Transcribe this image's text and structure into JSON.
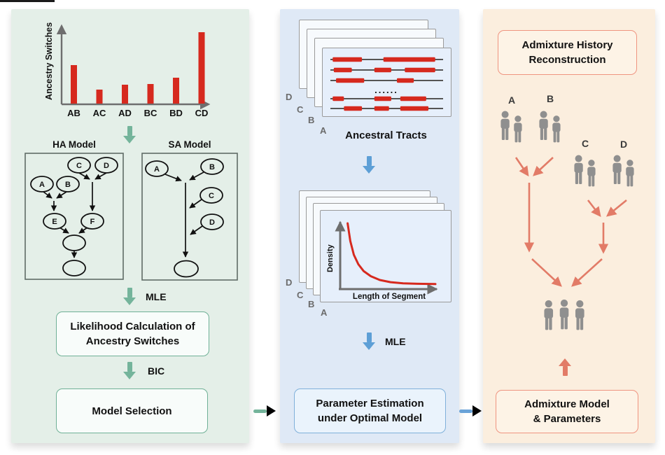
{
  "left": {
    "ha_title": "HA Model",
    "sa_title": "SA Model",
    "ha_nodes": [
      "A",
      "B",
      "C",
      "D",
      "E",
      "F"
    ],
    "sa_nodes": [
      "A",
      "B",
      "C",
      "D"
    ],
    "mle": "MLE",
    "bic": "BIC",
    "likelihood_line1": "Likelihood Calculation of",
    "likelihood_line2": "Ancestry Switches",
    "model_selection": "Model Selection"
  },
  "middle": {
    "tracts_caption": "Ancestral Tracts",
    "stack_labels": [
      "D",
      "C",
      "B",
      "A"
    ],
    "ellipsis": "......",
    "mle": "MLE",
    "box_line1": "Parameter Estimation",
    "box_line2": "under Optimal Model",
    "tract_rows": [
      {
        "y": 16,
        "segments": [
          [
            0.02,
            0.28
          ],
          [
            0.47,
            0.93
          ]
        ]
      },
      {
        "y": 31,
        "segments": [
          [
            0.03,
            0.19
          ],
          [
            0.39,
            0.54
          ],
          [
            0.66,
            0.93
          ]
        ]
      },
      {
        "y": 46,
        "segments": [
          [
            0.05,
            0.3
          ],
          [
            0.59,
            0.74
          ]
        ]
      },
      {
        "y": 72,
        "segments": [
          [
            0.02,
            0.12
          ],
          [
            0.39,
            0.54
          ],
          [
            0.62,
            0.85
          ]
        ]
      },
      {
        "y": 86,
        "segments": [
          [
            0.12,
            0.28
          ],
          [
            0.39,
            0.52
          ],
          [
            0.62,
            0.87
          ]
        ]
      }
    ]
  },
  "right": {
    "title_line1": "Admixture History",
    "title_line2": "Reconstruction",
    "pop_labels": [
      "A",
      "B",
      "C",
      "D"
    ],
    "box_line1": "Admixture Model",
    "box_line2": "& Parameters"
  },
  "chart_data": [
    {
      "type": "bar",
      "title": "",
      "ylabel": "Ancestry Switches",
      "xlabel": "",
      "categories": [
        "AB",
        "AC",
        "AD",
        "BC",
        "BD",
        "CD"
      ],
      "values": [
        55,
        20,
        27,
        28,
        37,
        102
      ],
      "ylim": [
        0,
        110
      ],
      "grid": false,
      "legend": false,
      "bar_color": "#d6291e"
    },
    {
      "type": "line",
      "title": "",
      "ylabel": "Density",
      "xlabel": "Length of Segment",
      "x": [
        0.02,
        0.05,
        0.09,
        0.14,
        0.2,
        0.28,
        0.38,
        0.5,
        0.64,
        0.8,
        1.0
      ],
      "y": [
        1.0,
        0.72,
        0.5,
        0.35,
        0.24,
        0.16,
        0.1,
        0.066,
        0.048,
        0.04,
        0.035
      ],
      "xlim": [
        0,
        1
      ],
      "ylim": [
        0,
        1.05
      ],
      "grid": false,
      "legend": false,
      "line_color": "#d6291e"
    }
  ],
  "colors": {
    "left_panel_bg": "#e4efe8",
    "middle_panel_bg": "#dfe9f6",
    "right_panel_bg": "#fbeede",
    "green_accent": "#74b49b",
    "blue_accent": "#5d9fd6",
    "salmon_accent": "#e27b67",
    "red_data": "#d6291e",
    "person_gray": "#8f8f8f"
  }
}
